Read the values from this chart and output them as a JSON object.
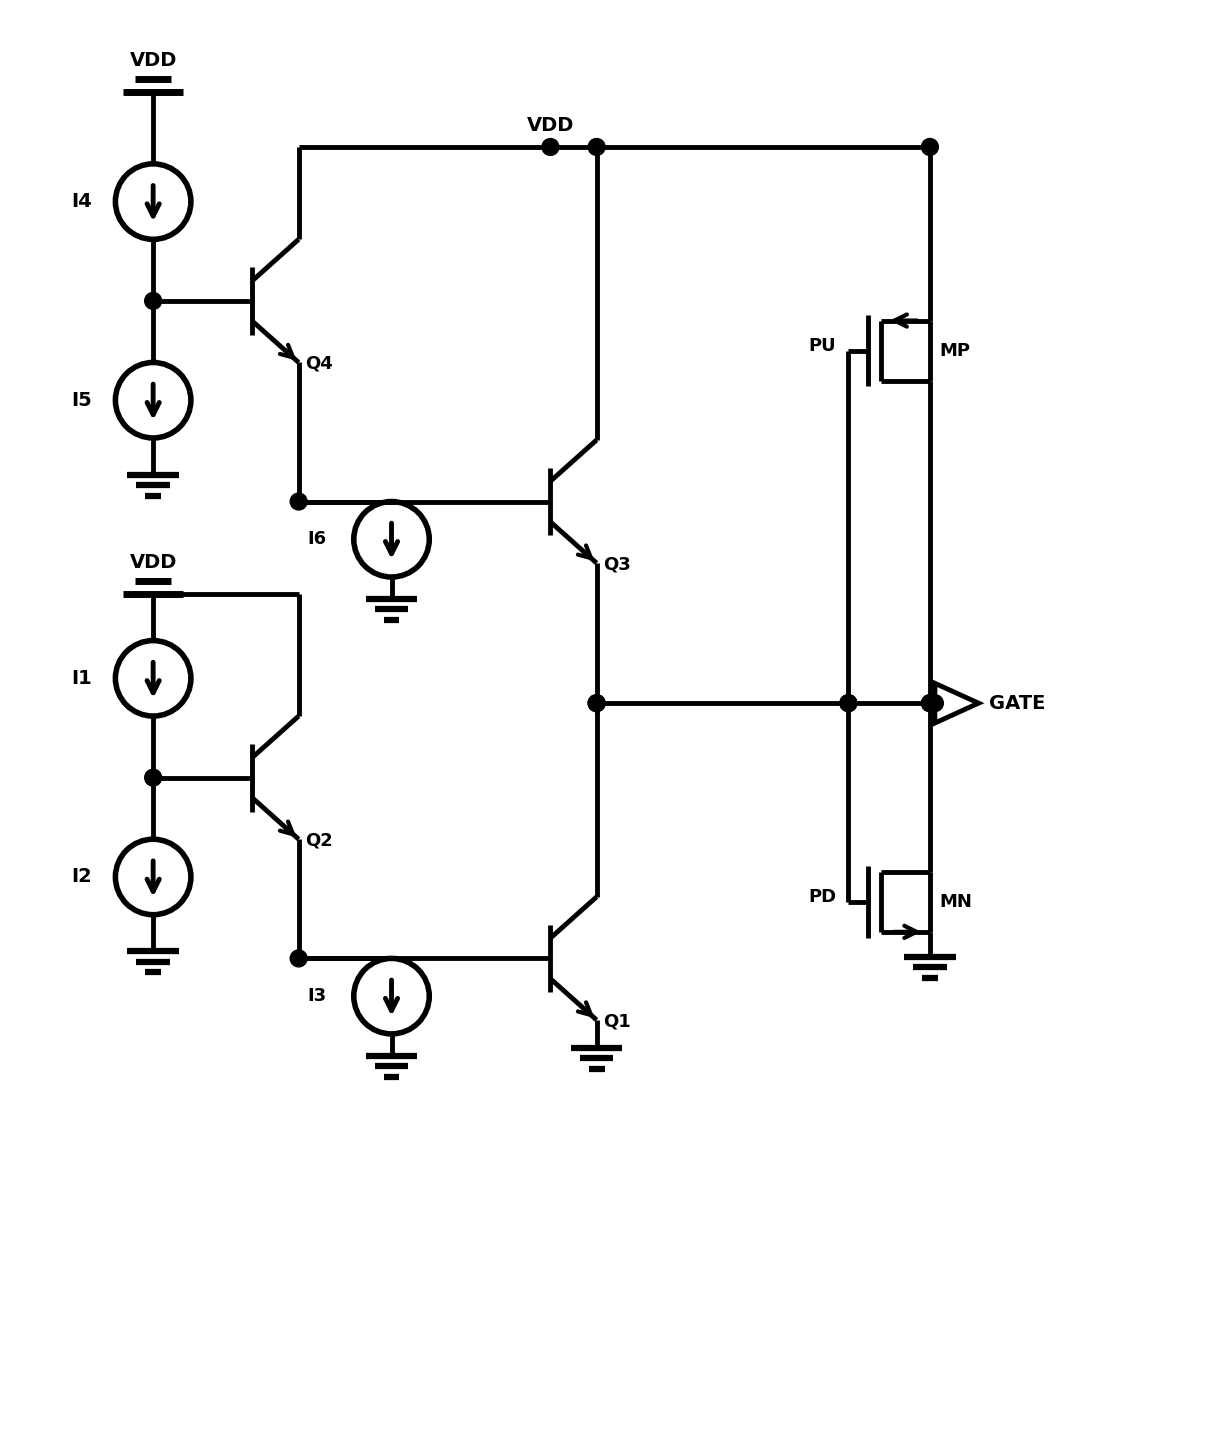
{
  "bg_color": "#ffffff",
  "line_color": "#000000",
  "line_width": 3.5,
  "figsize": [
    12.27,
    14.53
  ],
  "dpi": 100,
  "xlim": [
    0,
    12.27
  ],
  "ylim": [
    0,
    14.53
  ],
  "X_L": 1.5,
  "X_Q_BAR": 2.5,
  "X_I6I3": 3.9,
  "X_Q3Q1_BAR": 5.5,
  "Y_VDD_RAIL": 13.1,
  "Y_GATE": 7.5,
  "Y_VDD1_SYM": 13.65,
  "Y_I4_C": 12.55,
  "Y_NODE_A": 11.55,
  "Y_I5_C": 10.55,
  "Y_GND1": 9.8,
  "Y_I6_C": 9.15,
  "Y_VDD_L_SYM": 8.6,
  "Y_I1_C": 7.75,
  "Y_NODE_B": 6.75,
  "Y_I2_C": 5.75,
  "Y_GND2": 5.0,
  "Y_I3_C": 4.55,
  "BJT_SCALE": 0.62,
  "X_MP_GATE": 8.5,
  "Y_MP_C": 11.05,
  "MOS_SCALE": 0.72,
  "X_MN_GATE": 8.5,
  "Y_MN_C": 5.5,
  "X_VDD_DOT": 5.5
}
